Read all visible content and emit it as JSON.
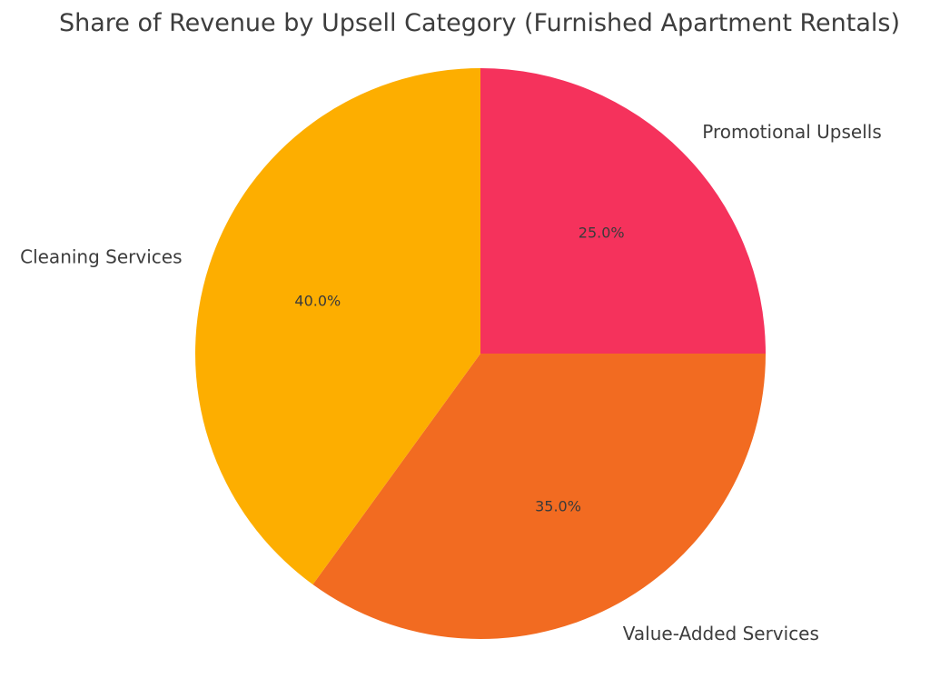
{
  "chart_data": {
    "type": "pie",
    "title": "Share of Revenue by Upsell Category (Furnished Apartment Rentals)",
    "categories": [
      "Promotional Upsells",
      "Value-Added Services",
      "Cleaning Services"
    ],
    "values": [
      25.0,
      35.0,
      40.0
    ],
    "value_labels": [
      "25.0%",
      "35.0%",
      "40.0%"
    ],
    "colors": [
      "#f5325c",
      "#f26b21",
      "#fdae00"
    ],
    "start_angle_deg": 90,
    "direction": "clockwise",
    "legend": "none"
  }
}
